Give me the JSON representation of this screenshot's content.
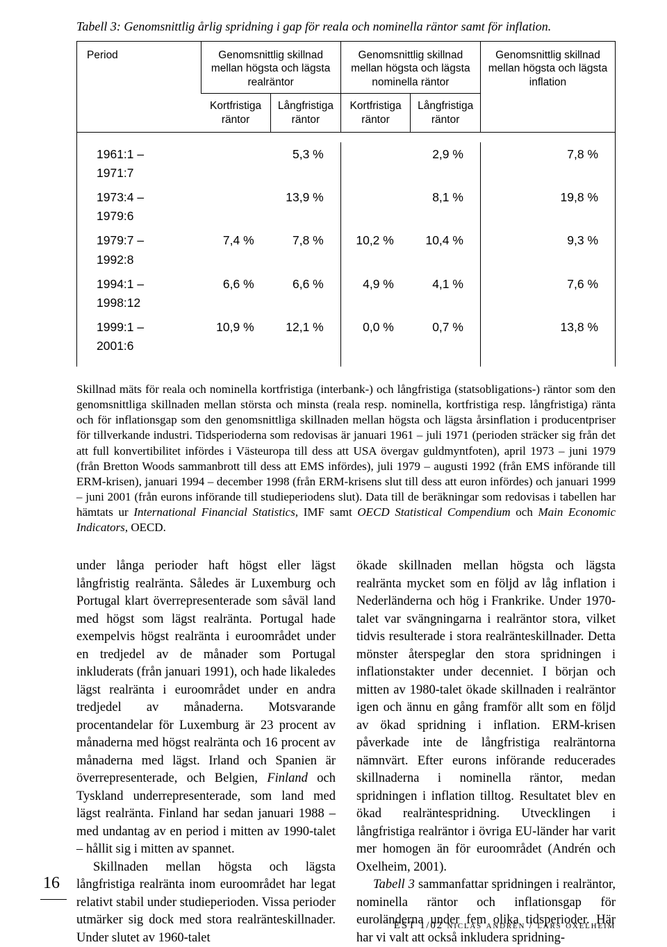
{
  "caption": {
    "label": "Tabell 3:",
    "text": "Genomsnittlig årlig spridning i gap för reala och nominella räntor samt för inflation."
  },
  "table": {
    "head": {
      "period": "Period",
      "group_real": "Genomsnittlig skillnad mellan högsta och lägsta realräntor",
      "group_nom": "Genomsnittlig skillnad mellan högsta och lägsta nominella räntor",
      "group_infl": "Genomsnittlig skillnad mellan högsta och lägsta inflation",
      "short": "Kortfristiga räntor",
      "long": "Långfristiga räntor"
    },
    "rows": [
      {
        "period": "1961:1 – 1971:7",
        "rk": "",
        "rl": "5,3 %",
        "nk": "",
        "nl": "2,9 %",
        "infl": "7,8 %"
      },
      {
        "period": "1973:4 – 1979:6",
        "rk": "",
        "rl": "13,9 %",
        "nk": "",
        "nl": "8,1 %",
        "infl": "19,8 %"
      },
      {
        "period": "1979:7 – 1992:8",
        "rk": "7,4 %",
        "rl": "7,8 %",
        "nk": "10,2 %",
        "nl": "10,4 %",
        "infl": "9,3 %"
      },
      {
        "period": "1994:1 – 1998:12",
        "rk": "6,6 %",
        "rl": "6,6 %",
        "nk": "4,9 %",
        "nl": "4,1 %",
        "infl": "7,6 %"
      },
      {
        "period": "1999:1 – 2001:6",
        "rk": "10,9 %",
        "rl": "12,1 %",
        "nk": "0,0 %",
        "nl": "0,7 %",
        "infl": "13,8 %"
      }
    ]
  },
  "note_html": "Skillnad mäts för reala och nominella kortfristiga (interbank-) och långfristiga (statsobligations-) räntor som den genomsnittliga skillnaden mellan största och minsta (reala resp. nominella, kortfristiga resp. långfristiga) ränta och för inflationsgap som den genomsnittliga skillnaden mellan högsta och lägsta årsinflation i producentpriser för tillverkande industri. Tidsperioderna som redovisas är januari 1961 – juli 1971 (perioden sträcker sig från det att full konvertibilitet infördes i Västeuropa till dess att USA övergav guldmyntfoten), april 1973 – juni 1979 (från Bretton Woods sammanbrott till dess att EMS infördes), juli 1979 – augusti 1992 (från EMS införande till ERM-krisen), januari 1994 – december 1998 (från ERM-krisens slut till dess att euron infördes) och januari 1999 – juni 2001 (från eurons införande till studieperiodens slut). Data till de beräkningar som redovisas i tabellen har hämtats ur <em>International Financial Statistics,</em> IMF samt <em>OECD Statistical Compendium</em> och <em>Main Economic Indicators</em>, OECD.",
  "body": {
    "left": [
      "under långa perioder haft högst eller lägst långfristig realränta. Således är Luxemburg och Portugal klart överrepresenterade som såväl land med högst som lägst realränta. Portugal hade exempelvis högst realränta i euroområdet under en tredjedel av de månader som Portugal inkluderats (från januari 1991), och hade likaledes lägst realränta i euroområdet under en andra tredjedel av månaderna. Motsvarande procentandelar för Luxemburg är 23 procent av månaderna med högst realränta och 16 procent av månaderna med lägst. Irland och Spanien är överrepresenterade, och Belgien, <em>Finland</em> och Tyskland underrepresenterade, som land med lägst realränta. Finland har sedan januari 1988 – med undantag av en period i mitten av 1990-talet – hållit sig i mitten av spannet.",
      "Skillnaden mellan högsta och lägsta långfristiga realränta inom euroområdet har legat relativt stabil under studieperioden. Vissa perioder utmärker sig dock med stora realränteskillnader. Under slutet av 1960-talet"
    ],
    "right": [
      "ökade skillnaden mellan högsta och lägsta realränta mycket som en följd av låg inflation i Nederländerna och hög i Frankrike. Under 1970-talet var svängningarna i realräntor stora, vilket tidvis resulterade i stora realränteskillnader. Detta mönster återspeglar den stora spridningen i inflationstakter under decenniet. I början och mitten av 1980-talet ökade skillnaden i realräntor igen och ännu en gång framför allt som en följd av ökad spridning i inflation. ERM-krisen påverkade inte de långfristiga realräntorna nämnvärt. Efter eurons införande reducerades skillnaderna i nominella räntor, medan spridningen i inflation tilltog. Resultatet blev en ökad realräntespridning. Utvecklingen i långfristiga realräntor i övriga EU-länder har varit mer homogen än för euroområdet (Andrén och Oxelheim, 2001).",
      "<em>Tabell 3</em> sammanfattar spridningen i realräntor, nominella räntor och inflationsgap för euroländerna under fem olika tidsperioder. Här har vi valt att också inkludera spridning-"
    ]
  },
  "page_number": "16",
  "footer": "EST 1/02 niclas andrén / lars oxelheim"
}
